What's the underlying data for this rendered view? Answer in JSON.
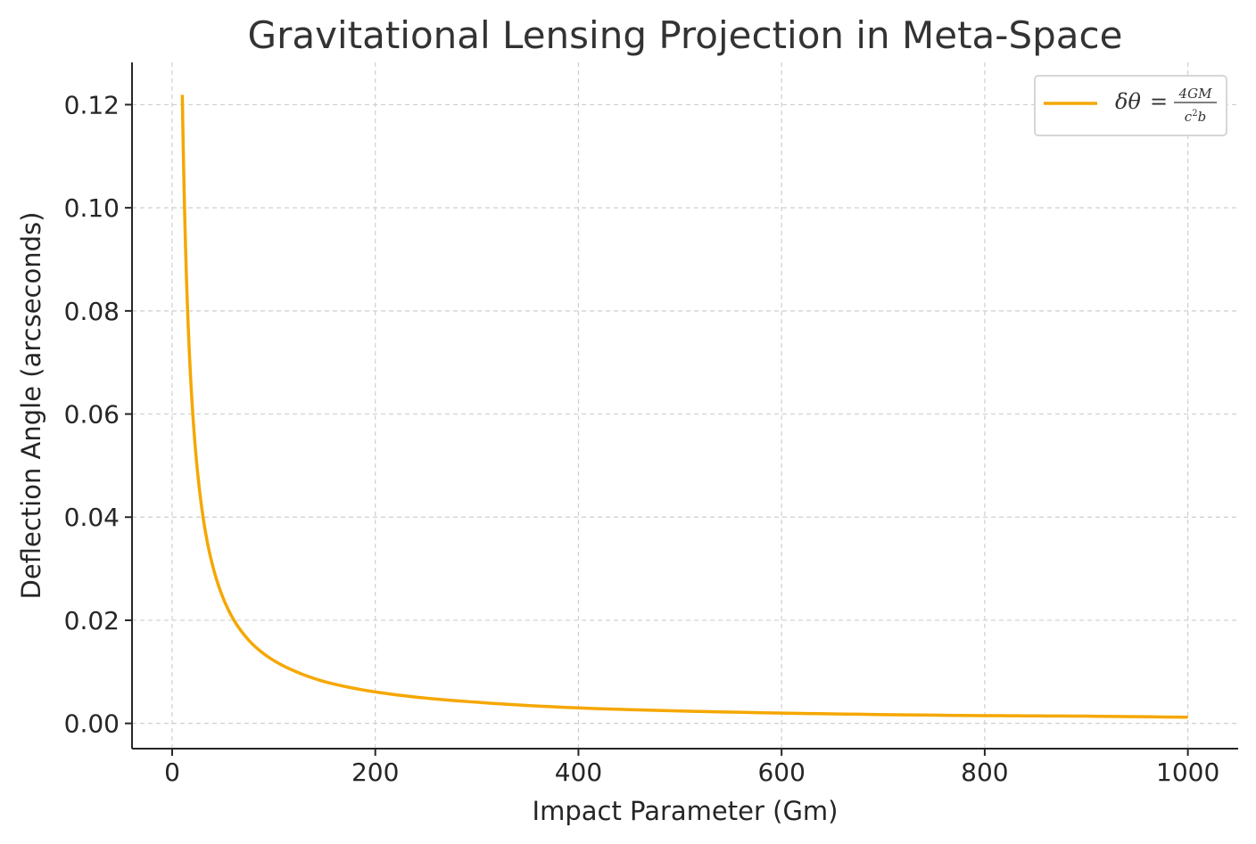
{
  "chart_data": {
    "type": "line",
    "title": "Gravitational Lensing Projection in Meta-Space",
    "xlabel": "Impact Parameter (Gm)",
    "ylabel": "Deflection Angle (arcseconds)",
    "xlim": [
      -39.5,
      1049.5
    ],
    "ylim": [
      -0.0049,
      0.1282
    ],
    "xticks": [
      0,
      200,
      400,
      600,
      800,
      1000
    ],
    "xtick_labels": [
      "0",
      "200",
      "400",
      "600",
      "800",
      "1000"
    ],
    "yticks": [
      0.0,
      0.02,
      0.04,
      0.06,
      0.08,
      0.1,
      0.12
    ],
    "ytick_labels": [
      "0.00",
      "0.02",
      "0.04",
      "0.06",
      "0.08",
      "0.10",
      "0.12"
    ],
    "grid": true,
    "legend_position": "top-right",
    "series": [
      {
        "name": "δθ = 4GM / c²b",
        "color": "#f5a700",
        "x": [
          10,
          12,
          14,
          16,
          18,
          20,
          25,
          30,
          35,
          40,
          50,
          60,
          70,
          80,
          100,
          120,
          150,
          200,
          250,
          300,
          400,
          500,
          600,
          700,
          800,
          900,
          1000
        ],
        "y": [
          0.1219,
          0.1016,
          0.0871,
          0.0762,
          0.0677,
          0.061,
          0.0488,
          0.0406,
          0.0348,
          0.0305,
          0.0244,
          0.0203,
          0.0174,
          0.0152,
          0.0122,
          0.0102,
          0.0081,
          0.0061,
          0.0049,
          0.0041,
          0.003,
          0.0024,
          0.002,
          0.0017,
          0.0015,
          0.0014,
          0.0012
        ]
      }
    ],
    "legend_formula": {
      "lhs": "δθ",
      "equals": "=",
      "numerator": "4GM",
      "denominator_c": "c",
      "denominator_exp": "2",
      "denominator_b": "b"
    }
  }
}
